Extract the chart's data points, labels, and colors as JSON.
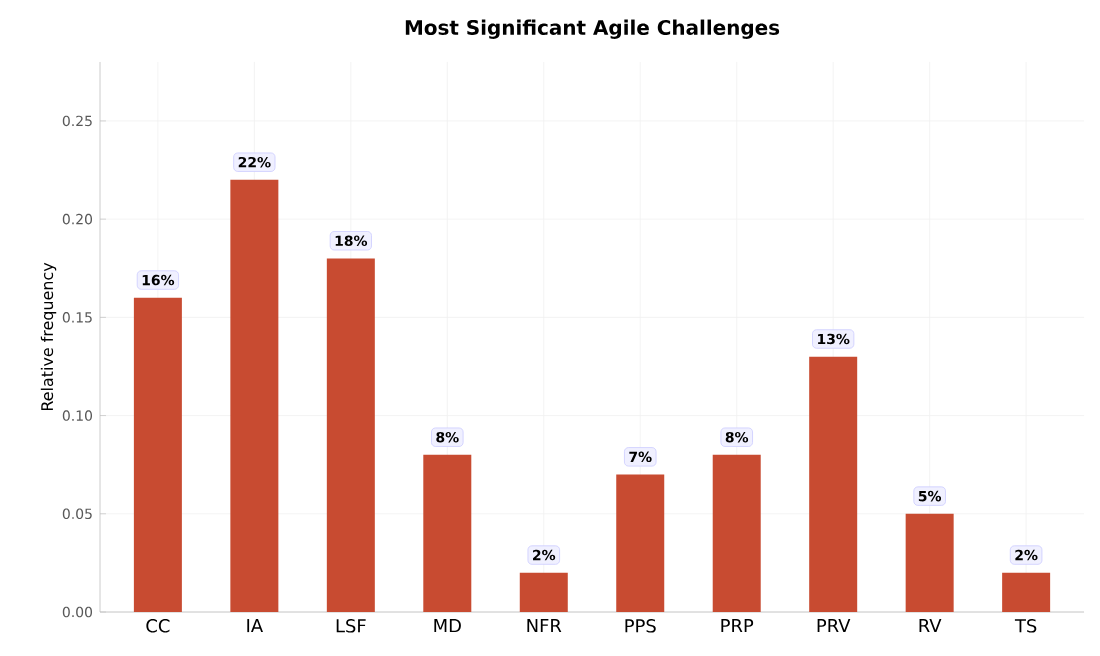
{
  "chart_data": {
    "type": "bar",
    "title": "Most Significant Agile Challenges",
    "ylabel": "Relative frequency",
    "categories": [
      "CC",
      "IA",
      "LSF",
      "MD",
      "NFR",
      "PPS",
      "PRP",
      "PRV",
      "RV",
      "TS"
    ],
    "values": [
      0.16,
      0.22,
      0.18,
      0.08,
      0.02,
      0.07,
      0.08,
      0.13,
      0.05,
      0.02
    ],
    "value_labels": [
      "16%",
      "22%",
      "18%",
      "8%",
      "2%",
      "7%",
      "8%",
      "13%",
      "5%",
      "2%"
    ],
    "color": "#c84b31",
    "ylim": [
      0,
      0.28
    ],
    "yticks": [
      {
        "value": 0,
        "label": "0.00"
      },
      {
        "value": 0.05,
        "label": "0.05"
      },
      {
        "value": 0.1,
        "label": "0.10"
      },
      {
        "value": 0.15,
        "label": "0.15"
      },
      {
        "value": 0.2,
        "label": "0.20"
      },
      {
        "value": 0.25,
        "label": "0.25"
      }
    ],
    "grid": true
  }
}
